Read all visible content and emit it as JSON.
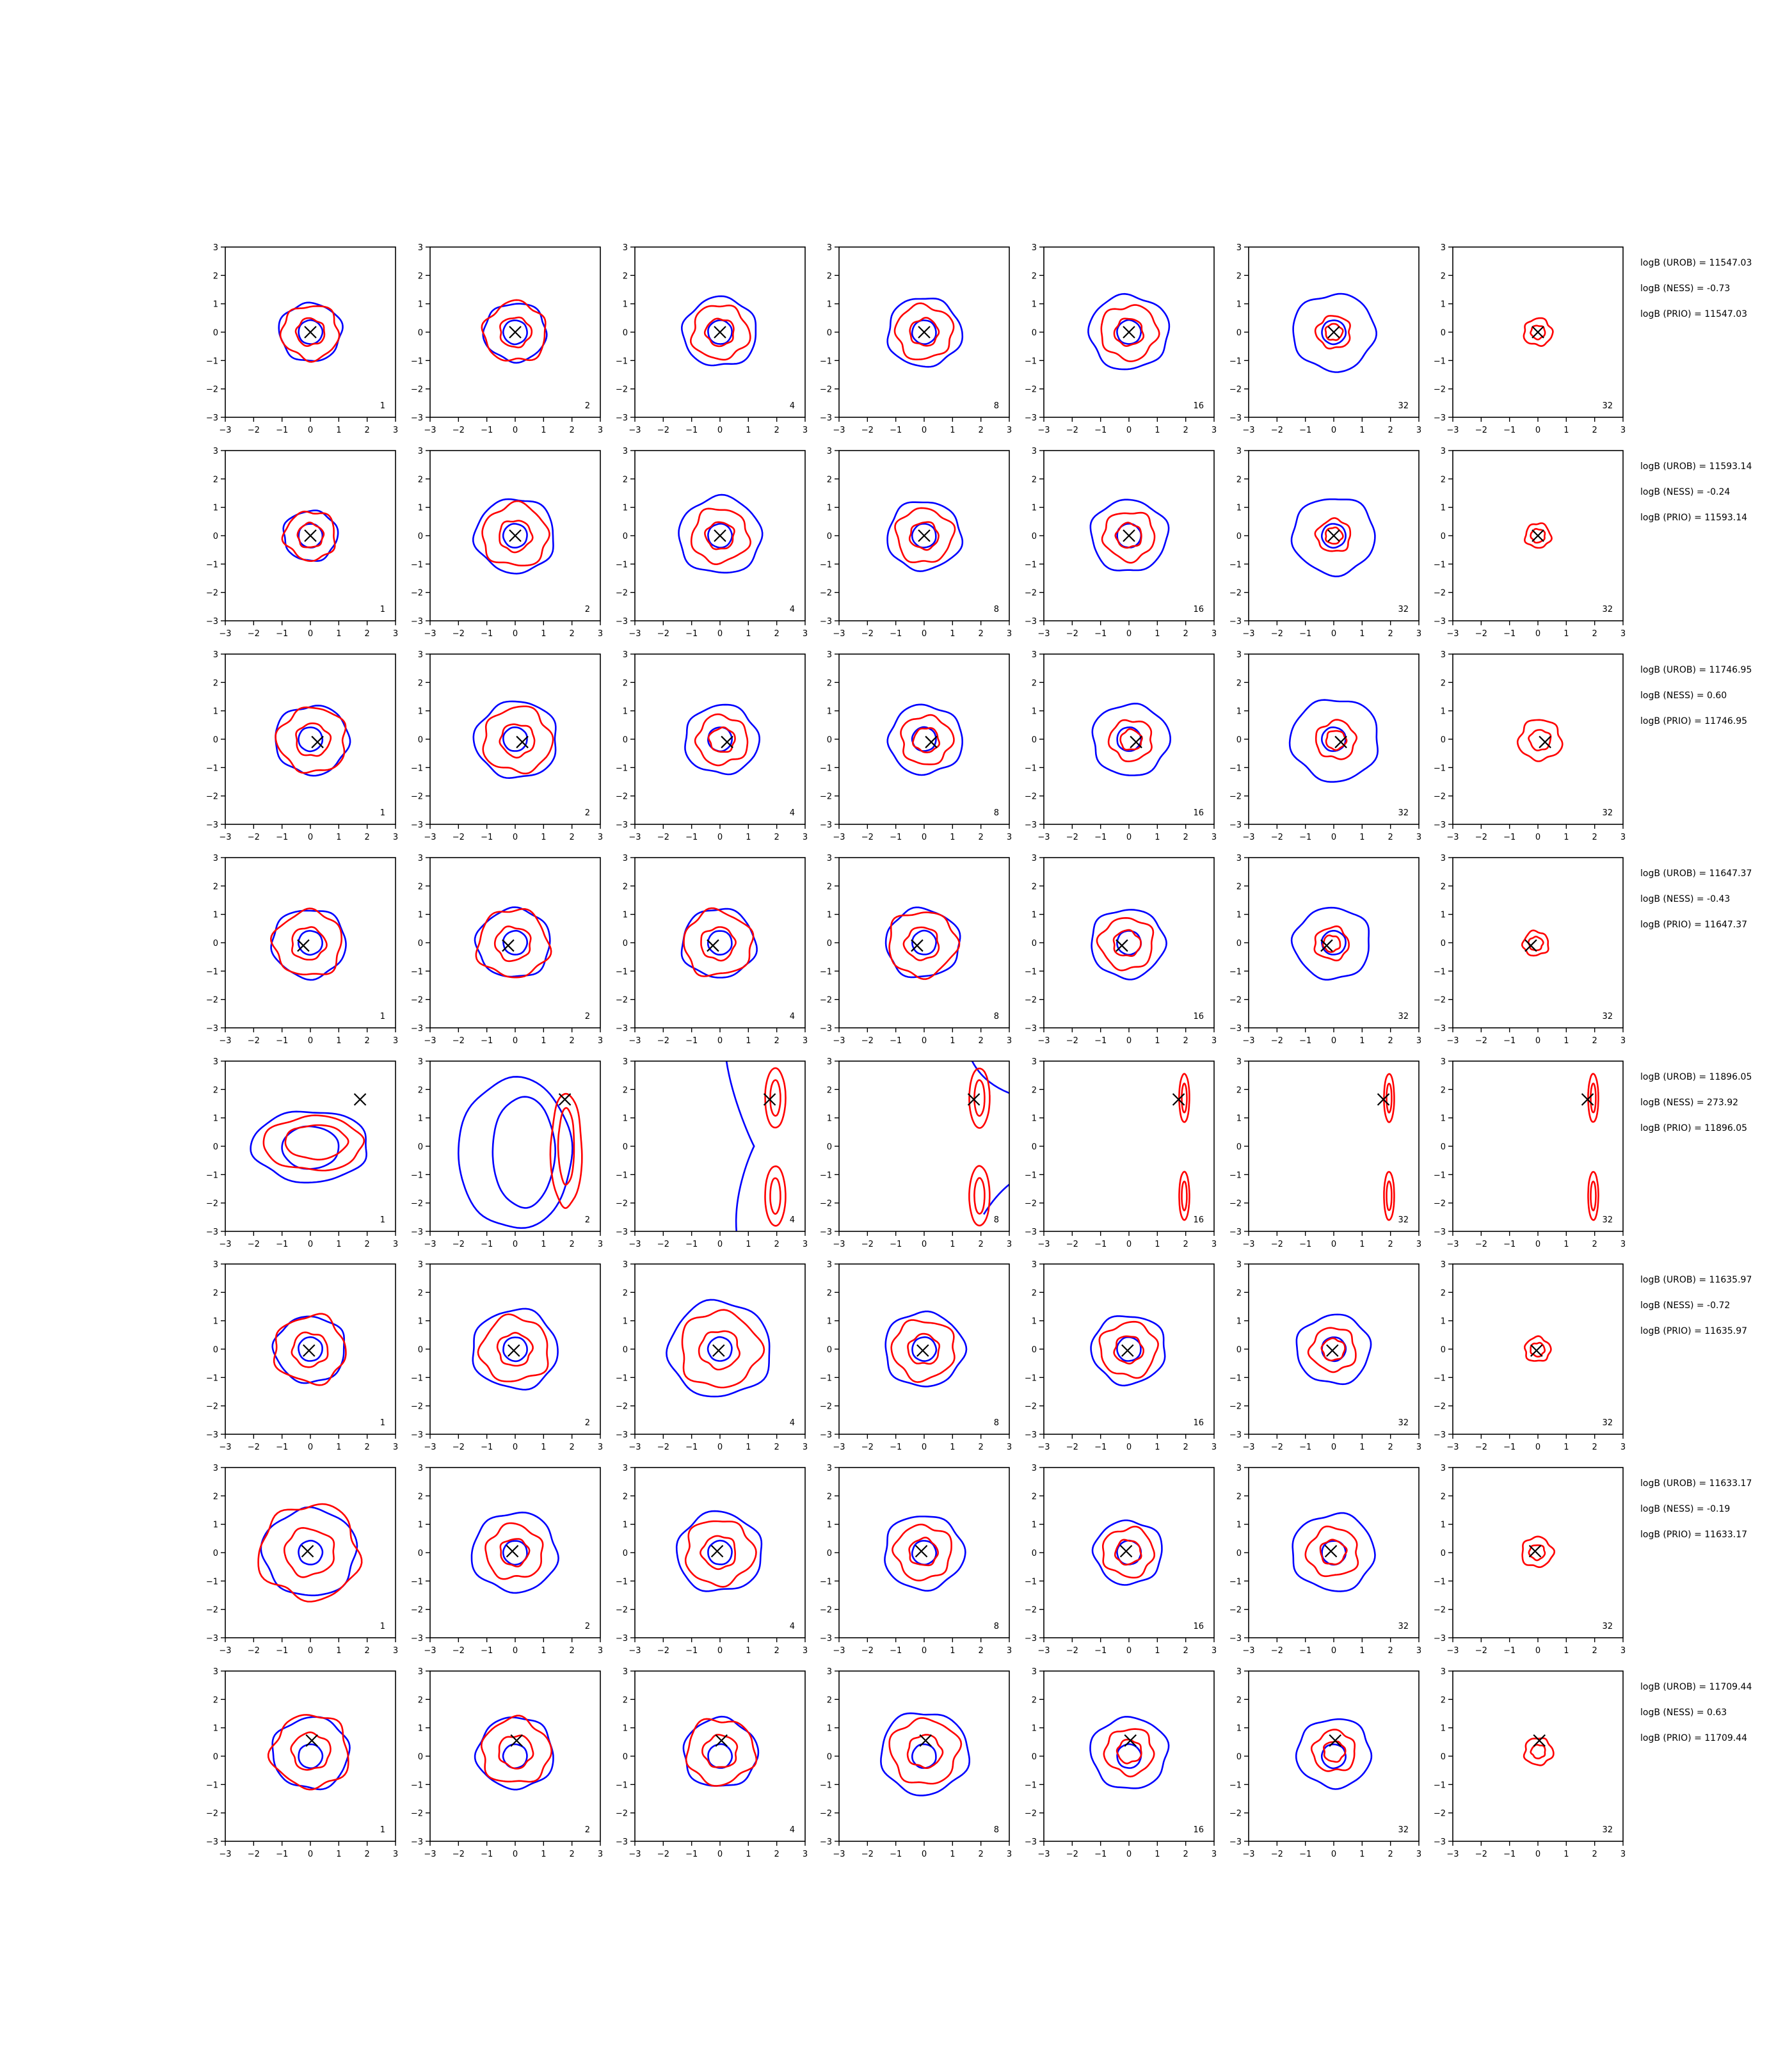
{
  "chart_data": {
    "type": "contour",
    "layout": "8 rows x 7 columns of panels",
    "xlim": [
      -3,
      3
    ],
    "ylim": [
      -3,
      3
    ],
    "ticks": [
      "−3",
      "−2",
      "−1",
      "0",
      "1",
      "2",
      "3"
    ],
    "grid": false,
    "colors": {
      "blue": "#0000ff",
      "red": "#ff0000",
      "marker": "#000000",
      "axes": "#000000"
    },
    "series": [
      {
        "color": "blue"
      },
      {
        "color": "red"
      }
    ],
    "marker": "x (black)",
    "rows": [
      {
        "panel_labels": [
          "1",
          "2",
          "4",
          "8",
          "16",
          "32",
          "32"
        ],
        "marker_xy": [
          0,
          0
        ],
        "blue_radius": [
          1.1,
          1.1,
          1.3,
          1.3,
          1.4,
          1.45,
          null
        ],
        "red_radius": [
          1.0,
          1.1,
          1.0,
          1.0,
          1.0,
          0.6,
          0.5
        ],
        "stats": [
          "logB (UROB) = 11547.03",
          "logB (NESS) = -0.73",
          "logB (PRIO) = 11547.03"
        ]
      },
      {
        "panel_labels": [
          "1",
          "2",
          "4",
          "8",
          "16",
          "32",
          "32"
        ],
        "marker_xy": [
          0,
          0
        ],
        "blue_radius": [
          0.95,
          1.4,
          1.45,
          1.3,
          1.35,
          1.45,
          null
        ],
        "red_radius": [
          0.9,
          1.15,
          1.0,
          1.0,
          0.9,
          0.6,
          0.45
        ],
        "stats": [
          "logB (UROB) = 11593.14",
          "logB (NESS) = -0.24",
          "logB (PRIO) = 11593.14"
        ]
      },
      {
        "panel_labels": [
          "1",
          "2",
          "4",
          "8",
          "16",
          "32",
          "32"
        ],
        "marker_xy": [
          0.25,
          -0.1
        ],
        "blue_radius": [
          1.3,
          1.45,
          1.3,
          1.3,
          1.35,
          1.55,
          null
        ],
        "red_radius": [
          1.2,
          1.2,
          0.9,
          0.9,
          0.75,
          0.7,
          0.75
        ],
        "stats": [
          "logB (UROB) = 11746.95",
          "logB (NESS) = 0.60",
          "logB (PRIO) = 11746.95"
        ]
      },
      {
        "panel_labels": [
          "1",
          "2",
          "4",
          "8",
          "16",
          "32",
          "32"
        ],
        "marker_xy": [
          -0.25,
          -0.1
        ],
        "blue_radius": [
          1.3,
          1.3,
          1.3,
          1.3,
          1.3,
          1.35,
          null
        ],
        "red_radius": [
          1.2,
          1.25,
          1.2,
          1.2,
          0.95,
          0.6,
          0.45
        ],
        "stats": [
          "logB (UROB) = 11647.37",
          "logB (NESS) = -0.43",
          "logB (PRIO) = 11647.37"
        ]
      },
      {
        "panel_labels": [
          "1",
          "2",
          "4",
          "8",
          "16",
          "32",
          "32"
        ],
        "marker_xy": [
          1.75,
          1.65
        ],
        "stats": [
          "logB (UROB) = 11896.05",
          "logB (NESS) = 273.92",
          "logB (PRIO) = 11896.05"
        ]
      },
      {
        "panel_labels": [
          "1",
          "2",
          "4",
          "8",
          "16",
          "32",
          "32"
        ],
        "marker_xy": [
          -0.05,
          -0.05
        ],
        "blue_radius": [
          1.25,
          1.5,
          1.8,
          1.4,
          1.3,
          1.3,
          null
        ],
        "red_radius": [
          1.25,
          1.2,
          1.4,
          1.1,
          1.0,
          0.8,
          0.45
        ],
        "stats": [
          "logB (UROB) = 11635.97",
          "logB (NESS) = -0.72",
          "logB (PRIO) = 11635.97"
        ]
      },
      {
        "panel_labels": [
          "1",
          "2",
          "4",
          "8",
          "16",
          "32",
          "32"
        ],
        "marker_xy": [
          -0.1,
          0.05
        ],
        "blue_radius": [
          1.65,
          1.5,
          1.5,
          1.4,
          1.2,
          1.45,
          null
        ],
        "red_radius": [
          1.75,
          1.0,
          1.2,
          1.0,
          0.9,
          0.9,
          0.55
        ],
        "stats": [
          "logB (UROB) = 11633.17",
          "logB (NESS) = -0.19",
          "logB (PRIO) = 11633.17"
        ]
      },
      {
        "panel_labels": [
          "1",
          "2",
          "4",
          "8",
          "16",
          "32",
          "32"
        ],
        "marker_xy": [
          0.05,
          0.55
        ],
        "blue_radius": [
          1.35,
          1.35,
          1.3,
          1.55,
          1.35,
          1.3,
          null
        ],
        "red_radius": [
          1.35,
          1.2,
          1.2,
          1.2,
          0.85,
          0.75,
          0.5
        ],
        "stats": [
          "logB (UROB) = 11709.44",
          "logB (NESS) = 0.63",
          "logB (PRIO) = 11709.44"
        ]
      }
    ]
  }
}
